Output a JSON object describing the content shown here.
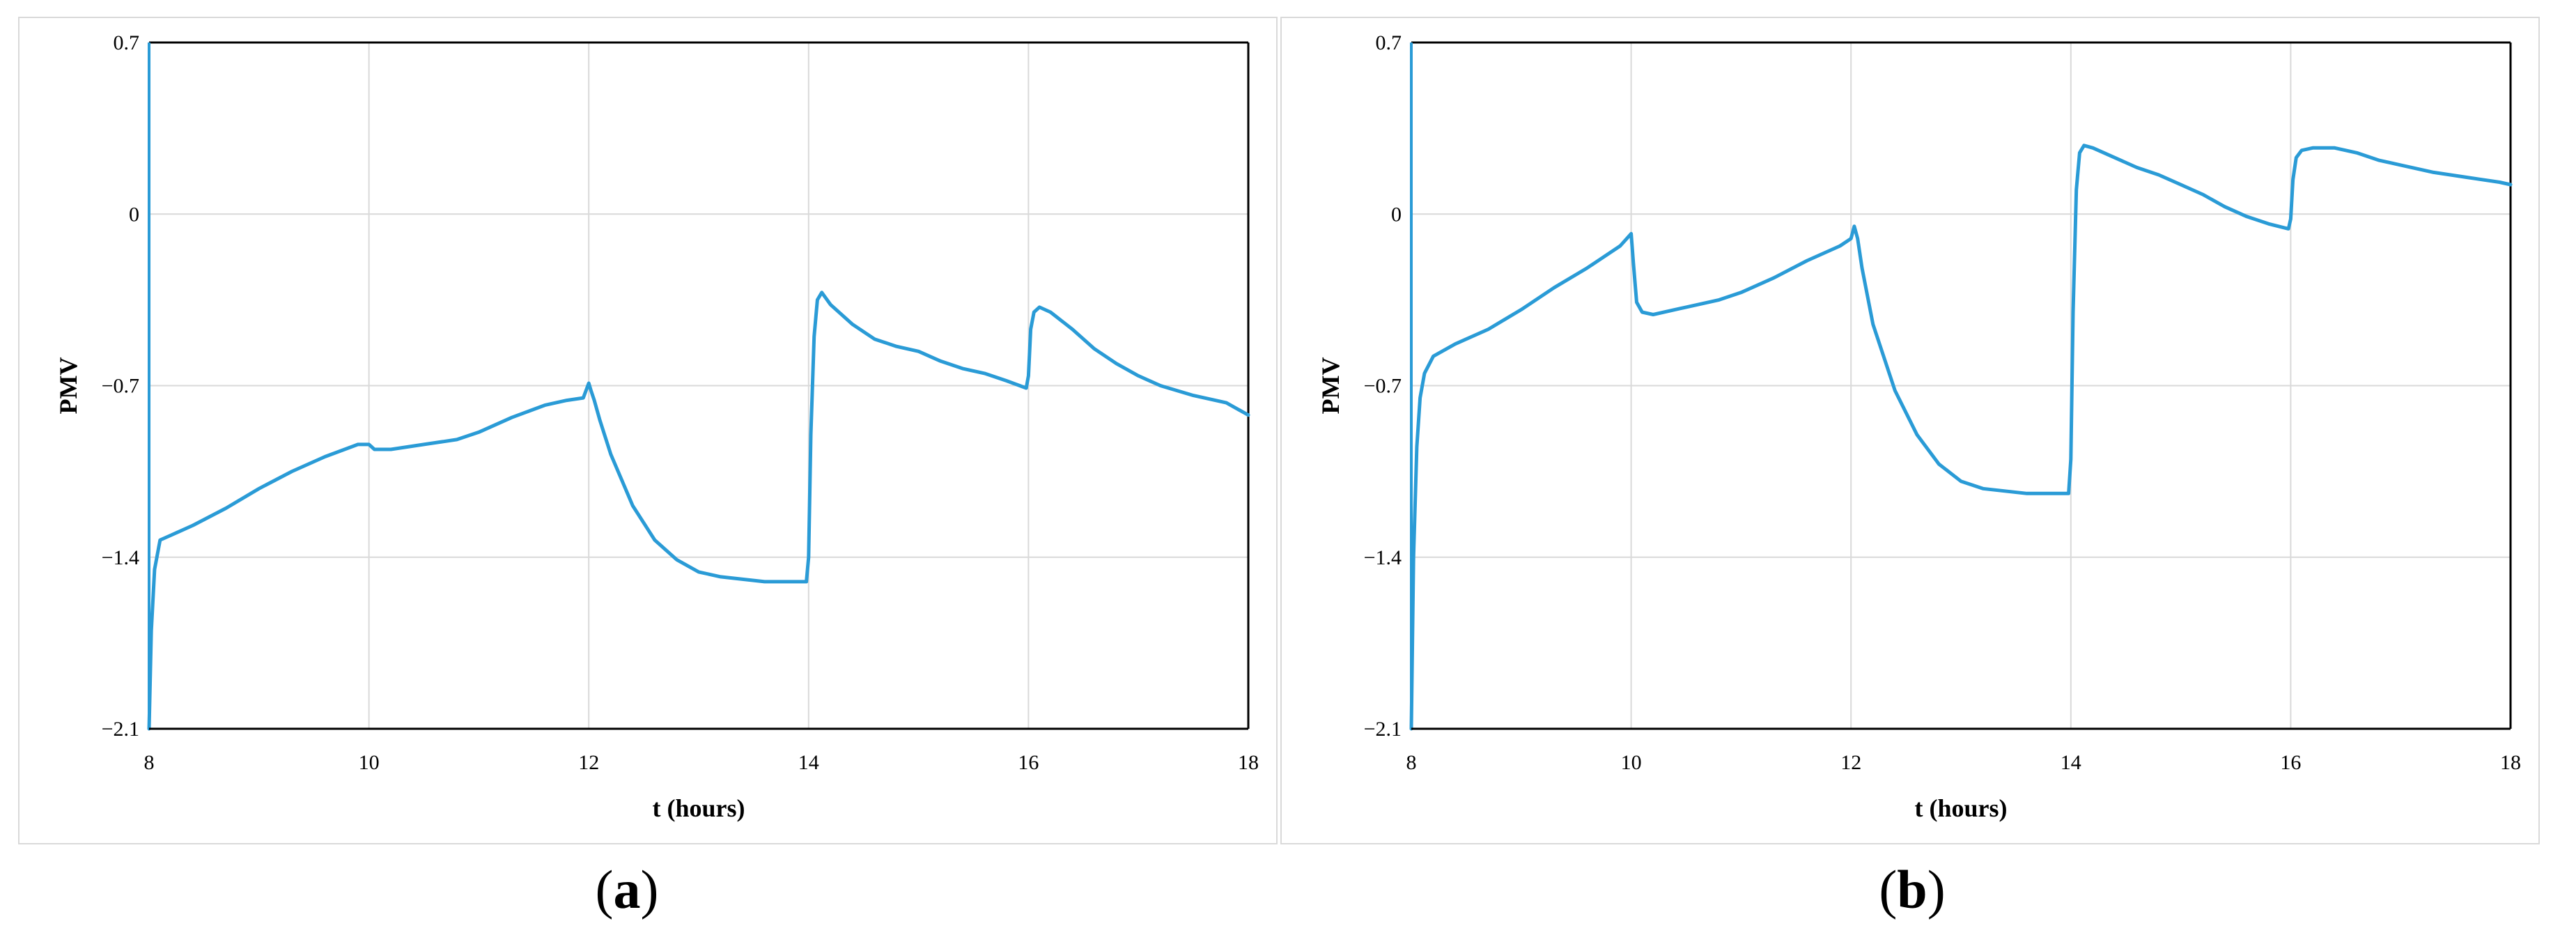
{
  "chart_data": [
    {
      "type": "line",
      "panel_label": "a",
      "xlabel": "t (hours)",
      "ylabel": "PMV",
      "xlim": [
        8,
        18
      ],
      "ylim": [
        -2.1,
        0.7
      ],
      "xticks": [
        "8",
        "10",
        "12",
        "14",
        "16",
        "18"
      ],
      "yticks": [
        "0.7",
        "0",
        "-0.7",
        "-1.4",
        "-2.1"
      ],
      "grid": true,
      "line_color": "#2a9bd6",
      "series": [
        {
          "x": [
            8.0,
            8.02,
            8.05,
            8.1,
            8.2,
            8.4,
            8.7,
            9.0,
            9.3,
            9.6,
            9.9,
            10.0,
            10.05,
            10.2,
            10.5,
            10.8,
            11.0,
            11.3,
            11.6,
            11.8,
            11.95,
            12.0,
            12.02,
            12.05,
            12.1,
            12.2,
            12.4,
            12.6,
            12.8,
            13.0,
            13.2,
            13.4,
            13.6,
            13.8,
            13.98,
            14.0,
            14.02,
            14.05,
            14.08,
            14.12,
            14.2,
            14.4,
            14.6,
            14.8,
            15.0,
            15.2,
            15.4,
            15.6,
            15.8,
            15.98,
            16.0,
            16.02,
            16.05,
            16.1,
            16.2,
            16.4,
            16.6,
            16.8,
            17.0,
            17.2,
            17.5,
            17.8,
            18.0
          ],
          "y": [
            -2.1,
            -1.7,
            -1.45,
            -1.33,
            -1.31,
            -1.27,
            -1.2,
            -1.12,
            -1.05,
            -0.99,
            -0.94,
            -0.94,
            -0.96,
            -0.96,
            -0.94,
            -0.92,
            -0.89,
            -0.83,
            -0.78,
            -0.76,
            -0.75,
            -0.69,
            -0.72,
            -0.76,
            -0.84,
            -0.98,
            -1.19,
            -1.33,
            -1.41,
            -1.46,
            -1.48,
            -1.49,
            -1.5,
            -1.5,
            -1.5,
            -1.4,
            -0.9,
            -0.5,
            -0.35,
            -0.32,
            -0.37,
            -0.45,
            -0.51,
            -0.54,
            -0.56,
            -0.6,
            -0.63,
            -0.65,
            -0.68,
            -0.71,
            -0.66,
            -0.47,
            -0.4,
            -0.38,
            -0.4,
            -0.47,
            -0.55,
            -0.61,
            -0.66,
            -0.7,
            -0.74,
            -0.77,
            -0.82
          ]
        }
      ]
    },
    {
      "type": "line",
      "panel_label": "b",
      "xlabel": "t (hours)",
      "ylabel": "PMV",
      "xlim": [
        8,
        18
      ],
      "ylim": [
        -2.1,
        0.7
      ],
      "xticks": [
        "8",
        "10",
        "12",
        "14",
        "16",
        "18"
      ],
      "yticks": [
        "0.7",
        "0",
        "-0.7",
        "-1.4",
        "-2.1"
      ],
      "grid": true,
      "line_color": "#2a9bd6",
      "series": [
        {
          "x": [
            8.0,
            8.02,
            8.05,
            8.08,
            8.12,
            8.2,
            8.4,
            8.7,
            9.0,
            9.3,
            9.6,
            9.9,
            10.0,
            10.02,
            10.05,
            10.1,
            10.2,
            10.5,
            10.8,
            11.0,
            11.3,
            11.6,
            11.9,
            12.0,
            12.03,
            12.06,
            12.1,
            12.2,
            12.4,
            12.6,
            12.8,
            13.0,
            13.2,
            13.4,
            13.6,
            13.8,
            13.98,
            14.0,
            14.02,
            14.05,
            14.08,
            14.12,
            14.2,
            14.4,
            14.6,
            14.8,
            15.0,
            15.2,
            15.4,
            15.6,
            15.8,
            15.98,
            16.0,
            16.02,
            16.05,
            16.1,
            16.2,
            16.4,
            16.6,
            16.8,
            17.0,
            17.3,
            17.6,
            17.9,
            18.0
          ],
          "y": [
            -2.1,
            -1.4,
            -0.95,
            -0.75,
            -0.65,
            -0.58,
            -0.53,
            -0.47,
            -0.39,
            -0.3,
            -0.22,
            -0.13,
            -0.08,
            -0.2,
            -0.36,
            -0.4,
            -0.41,
            -0.38,
            -0.35,
            -0.32,
            -0.26,
            -0.19,
            -0.13,
            -0.1,
            -0.05,
            -0.1,
            -0.22,
            -0.45,
            -0.72,
            -0.9,
            -1.02,
            -1.09,
            -1.12,
            -1.13,
            -1.14,
            -1.14,
            -1.14,
            -1.0,
            -0.4,
            0.1,
            0.25,
            0.28,
            0.27,
            0.23,
            0.19,
            0.16,
            0.12,
            0.08,
            0.03,
            -0.01,
            -0.04,
            -0.06,
            -0.02,
            0.14,
            0.23,
            0.26,
            0.27,
            0.27,
            0.25,
            0.22,
            0.2,
            0.17,
            0.15,
            0.13,
            0.12
          ]
        }
      ]
    }
  ],
  "captions": {
    "a": "a",
    "b": "b"
  }
}
